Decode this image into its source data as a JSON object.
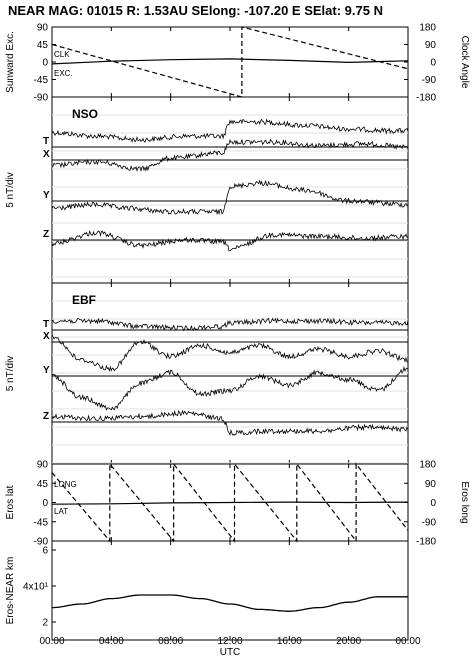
{
  "title": "NEAR MAG: 01015  R: 1.53AU  SElong: -107.20 E  SElat:    9.75 N",
  "x_axis": {
    "label": "UTC",
    "tick_labels": [
      "00:00",
      "04:00",
      "08:00",
      "12:00",
      "16:00",
      "20:00",
      "00:00"
    ]
  },
  "chart_data": [
    {
      "type": "line",
      "panel": "orientation",
      "ylabel_left": "Sunward Exc.",
      "ylabel_right": "Clock Angle",
      "left_ticks": [
        "90",
        "45",
        "0",
        "-45",
        "-90"
      ],
      "right_ticks": [
        "180",
        "90",
        "0",
        "-90",
        "-180"
      ],
      "ylim_left": [
        -90,
        90
      ],
      "ylim_right": [
        -180,
        180
      ],
      "series_labels": [
        "CLK",
        "EXC."
      ],
      "series": [
        {
          "key": "clk",
          "axis": "right",
          "style": "dashed",
          "x": [
            0,
            12.8,
            12.8,
            24
          ],
          "values": [
            90,
            -180,
            180,
            -35
          ]
        },
        {
          "key": "exc",
          "axis": "left",
          "style": "solid",
          "x": [
            0,
            4,
            8,
            12,
            16,
            20,
            24
          ],
          "values": [
            -5,
            2,
            6,
            8,
            4,
            -1,
            3
          ]
        }
      ]
    },
    {
      "type": "line",
      "panel": "NSO",
      "panel_label": "NSO",
      "ylabel": "5 nT/div",
      "components": [
        "T",
        "X",
        "Y",
        "Z"
      ],
      "units_per_div_nT": 5,
      "series": [
        {
          "key": "T",
          "x": [
            0,
            3,
            6,
            9,
            11.5,
            12,
            14,
            17,
            20,
            23,
            24
          ],
          "values": [
            0.8,
            0.6,
            0.4,
            0.6,
            0.6,
            1.4,
            1.4,
            1.2,
            1.0,
            0.9,
            0.9
          ]
        },
        {
          "key": "X",
          "x": [
            0,
            3,
            6,
            8,
            11.5,
            12,
            15,
            18,
            21,
            24
          ],
          "values": [
            -0.3,
            -0.1,
            -0.5,
            0.1,
            0.4,
            1.0,
            1.0,
            0.8,
            0.9,
            0.7
          ]
        },
        {
          "key": "Y",
          "x": [
            0,
            3,
            5,
            8,
            11.5,
            12,
            14,
            17,
            20,
            24
          ],
          "values": [
            -0.4,
            -0.2,
            -0.4,
            -0.6,
            -0.6,
            0.8,
            1.0,
            0.6,
            0.0,
            -0.2
          ]
        },
        {
          "key": "Z",
          "x": [
            0,
            3,
            6,
            9,
            11.5,
            12,
            15,
            18,
            21,
            24
          ],
          "values": [
            -0.2,
            0.4,
            -0.3,
            0.0,
            -0.1,
            -0.5,
            0.3,
            0.2,
            0.1,
            0.2
          ]
        }
      ]
    },
    {
      "type": "line",
      "panel": "EBF",
      "panel_label": "EBF",
      "ylabel": "5 nT/div",
      "components": [
        "T",
        "X",
        "Y",
        "Z"
      ],
      "units_per_div_nT": 5,
      "series": [
        {
          "key": "T",
          "x": [
            0,
            3,
            6,
            9,
            11.5,
            12,
            15,
            18,
            21,
            24
          ],
          "values": [
            0.5,
            0.5,
            0.2,
            0.1,
            0.2,
            0.4,
            0.5,
            0.5,
            0.4,
            0.4
          ]
        },
        {
          "key": "X",
          "x": [
            0,
            2,
            4,
            6,
            8,
            10,
            12,
            14,
            16,
            18,
            20,
            22,
            24
          ],
          "values": [
            0.3,
            -1.0,
            -1.5,
            0.0,
            -0.8,
            -0.2,
            -0.6,
            -0.2,
            -0.8,
            -0.4,
            -0.8,
            -0.5,
            -1.0
          ]
        },
        {
          "key": "Y",
          "x": [
            0,
            2,
            4,
            6,
            8,
            10,
            12,
            14,
            16,
            18,
            20,
            22,
            24
          ],
          "values": [
            0.0,
            -1.2,
            -1.8,
            -0.4,
            0.2,
            -1.0,
            -0.8,
            0.0,
            -0.5,
            0.2,
            -0.2,
            -0.8,
            0.4
          ]
        },
        {
          "key": "Z",
          "x": [
            0,
            3,
            6,
            9,
            11.5,
            12,
            15,
            18,
            21,
            24
          ],
          "values": [
            0.3,
            0.2,
            0.3,
            0.5,
            0.2,
            -0.6,
            -0.5,
            -0.5,
            -0.3,
            -0.4
          ]
        }
      ]
    },
    {
      "type": "line",
      "panel": "eros-position",
      "ylabel_left": "Eros lat",
      "ylabel_right": "Eros long",
      "left_ticks": [
        "90",
        "45",
        "0",
        "-45",
        "-90"
      ],
      "right_ticks": [
        "180",
        "90",
        "0",
        "-90",
        "-180"
      ],
      "ylim_left": [
        -90,
        90
      ],
      "ylim_right": [
        -180,
        180
      ],
      "series_labels": [
        "LONG",
        "LAT"
      ],
      "series": [
        {
          "key": "long",
          "axis": "right",
          "style": "dashed",
          "x": [
            0,
            3.9,
            3.9,
            8.2,
            8.2,
            12.3,
            12.3,
            16.5,
            16.5,
            20.5,
            20.5,
            24
          ],
          "values": [
            140,
            -180,
            180,
            -180,
            180,
            -180,
            180,
            -180,
            180,
            -180,
            180,
            -130
          ]
        },
        {
          "key": "lat",
          "axis": "left",
          "style": "solid",
          "x": [
            0,
            4,
            8,
            12,
            16,
            20,
            24
          ],
          "values": [
            -4,
            -3,
            -1,
            0,
            1,
            0,
            1
          ]
        }
      ]
    },
    {
      "type": "line",
      "panel": "eros-near-distance",
      "ylabel": "Eros-NEAR km",
      "left_ticks": [
        "6",
        "4x10¹",
        "2"
      ],
      "ylim": [
        10,
        65
      ],
      "series": [
        {
          "key": "distance",
          "style": "solid",
          "x": [
            0,
            2,
            4,
            6,
            8,
            10,
            12,
            14,
            16,
            18,
            20,
            22,
            24
          ],
          "values": [
            28,
            30,
            33,
            35,
            35,
            33,
            30,
            27,
            26,
            28,
            31,
            34,
            34
          ]
        }
      ]
    }
  ]
}
